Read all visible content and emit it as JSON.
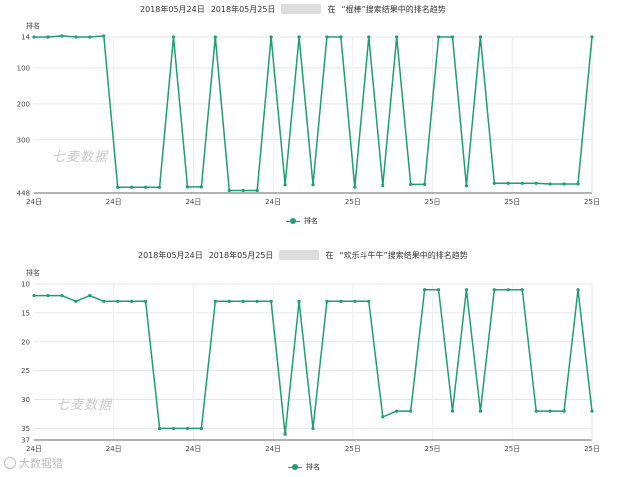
{
  "chart_data": [
    {
      "type": "line",
      "title": {
        "date_from": "2018年05月24日",
        "date_to": "2018年05月25日",
        "prefix": "在",
        "keyword": "“棍棒”",
        "suffix": "搜索结果中的排名趋势"
      },
      "ylabel": "排名",
      "y_ticks": [
        14,
        100,
        200,
        300,
        448
      ],
      "ylim": [
        14,
        448
      ],
      "y_inverted": true,
      "x_ticks": [
        "24日",
        "24日",
        "24日",
        "24日",
        "25日",
        "25日",
        "25日",
        "25日"
      ],
      "series": [
        {
          "name": "排名",
          "color": "#1e9e73",
          "values": [
            14,
            14,
            11,
            14,
            14,
            11,
            432,
            432,
            432,
            432,
            14,
            431,
            431,
            14,
            441,
            441,
            441,
            14,
            425,
            14,
            425,
            14,
            14,
            432,
            14,
            427,
            14,
            424,
            424,
            14,
            14,
            428,
            14,
            421,
            421,
            421,
            421,
            423,
            423,
            423,
            14
          ]
        }
      ],
      "watermark": "七麦数据"
    },
    {
      "type": "line",
      "title": {
        "date_from": "2018年05月24日",
        "date_to": "2018年05月25日",
        "prefix": "在",
        "keyword": "“欢乐斗牛牛”",
        "suffix": "搜索结果中的排名趋势"
      },
      "ylabel": "排名",
      "y_ticks": [
        10,
        15,
        20,
        25,
        30,
        35,
        37
      ],
      "ylim": [
        10,
        37
      ],
      "y_inverted": true,
      "x_ticks": [
        "24日",
        "24日",
        "24日",
        "24日",
        "25日",
        "25日",
        "25日",
        "25日"
      ],
      "series": [
        {
          "name": "排名",
          "color": "#1e9e73",
          "values": [
            12,
            12,
            12,
            13,
            12,
            13,
            13,
            13,
            13,
            35,
            35,
            35,
            35,
            13,
            13,
            13,
            13,
            13,
            36,
            13,
            35,
            13,
            13,
            13,
            13,
            33,
            32,
            32,
            11,
            11,
            32,
            11,
            32,
            11,
            11,
            11,
            32,
            32,
            32,
            11,
            32
          ]
        }
      ],
      "watermark": "七麦数据"
    }
  ],
  "footer_watermark": "大数据猎"
}
